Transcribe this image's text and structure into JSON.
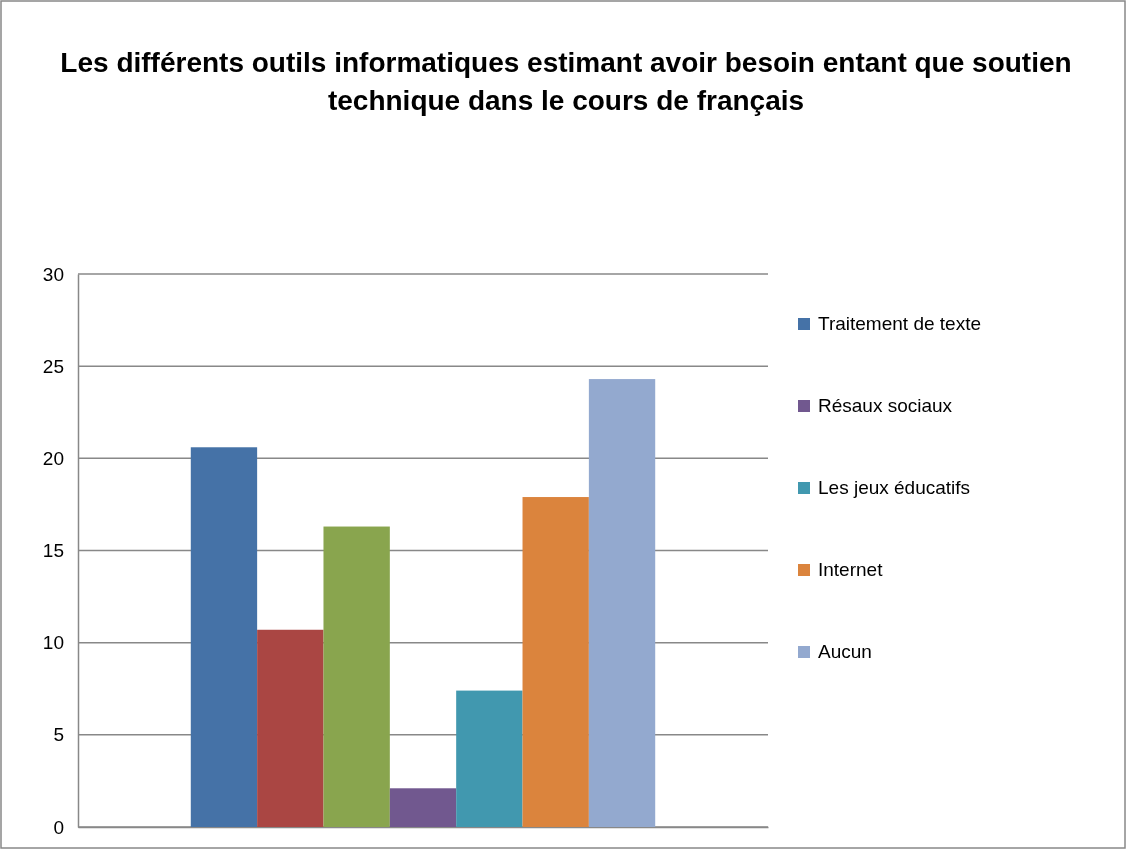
{
  "chart_data": {
    "type": "bar",
    "title": "Les différents outils informatiques estimant avoir besoin entant que soutien technique  dans le cours de français",
    "categories": [
      null
    ],
    "series": [
      {
        "name": "Traitement de texte",
        "color": "#4572a7",
        "values": [
          20.6
        ]
      },
      {
        "color": "#aa4643",
        "values": [
          10.7
        ]
      },
      {
        "color": "#89a54e",
        "values": [
          16.3
        ]
      },
      {
        "name": "Résaux sociaux",
        "color": "#71588f",
        "values": [
          2.1
        ]
      },
      {
        "name": "Les jeux éducatifs",
        "color": "#4198af",
        "values": [
          7.4
        ]
      },
      {
        "name": "Internet",
        "color": "#db843d",
        "values": [
          17.9
        ]
      },
      {
        "name": "Aucun",
        "color": "#93a9cf",
        "values": [
          24.3
        ]
      }
    ],
    "ylim": [
      0,
      30
    ],
    "yticks": [
      0,
      5,
      10,
      15,
      20,
      25,
      30
    ],
    "grid": "y",
    "legend": "right"
  }
}
